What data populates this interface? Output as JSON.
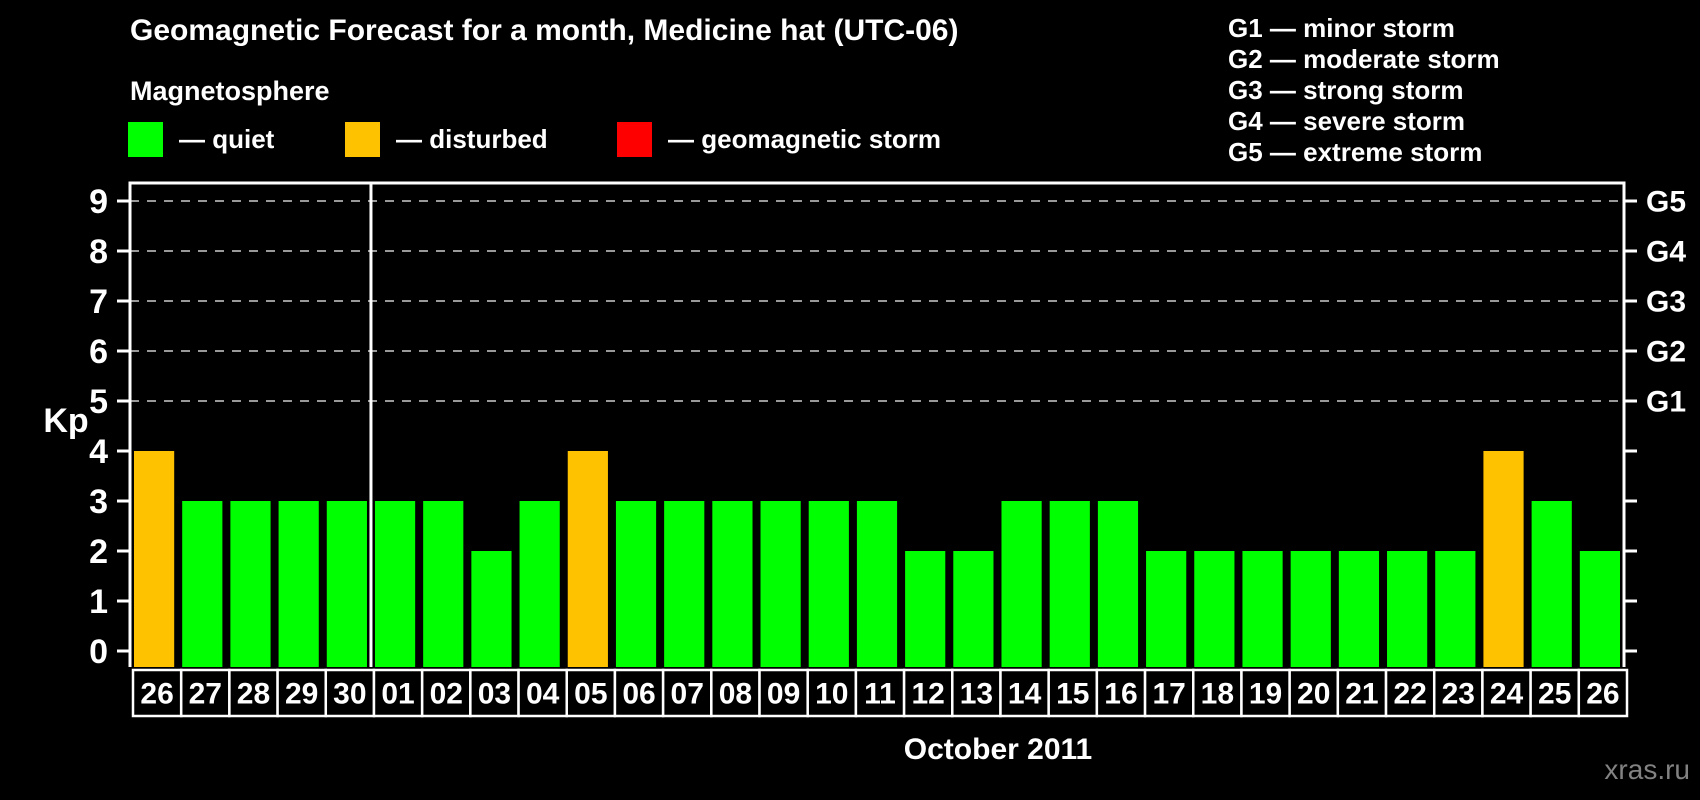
{
  "header": {
    "title": "Geomagnetic Forecast for a month, Medicine hat (UTC-06)",
    "subtitle": "Magnetosphere"
  },
  "legend": {
    "items": [
      {
        "label": "— quiet",
        "status": "quiet",
        "color": "#00FF00"
      },
      {
        "label": "— disturbed",
        "status": "disturbed",
        "color": "#FFC200"
      },
      {
        "label": "— geomagnetic storm",
        "status": "storm",
        "color": "#FF0000"
      }
    ]
  },
  "g_scale_legend": {
    "items": [
      "G1 — minor storm",
      "G2 — moderate storm",
      "G3 — strong storm",
      "G4 — severe storm",
      "G5 — extreme storm"
    ]
  },
  "watermark": "xras.ru",
  "chart_data": {
    "type": "bar",
    "title": "Geomagnetic Forecast for a month, Medicine hat (UTC-06)",
    "xlabel": "October 2011",
    "ylabel": "Kp",
    "ylim": [
      -0.32,
      9.36
    ],
    "yticks": [
      0,
      1,
      2,
      3,
      4,
      5,
      6,
      7,
      8,
      9
    ],
    "gridline_levels": [
      5,
      6,
      7,
      8,
      9
    ],
    "right_axis": [
      {
        "kp": 5,
        "label": "G1"
      },
      {
        "kp": 6,
        "label": "G2"
      },
      {
        "kp": 7,
        "label": "G3"
      },
      {
        "kp": 8,
        "label": "G4"
      },
      {
        "kp": 9,
        "label": "G5"
      }
    ],
    "month_separator_after_index": 4,
    "categories": [
      "26",
      "27",
      "28",
      "29",
      "30",
      "01",
      "02",
      "03",
      "04",
      "05",
      "06",
      "07",
      "08",
      "09",
      "10",
      "11",
      "12",
      "13",
      "14",
      "15",
      "16",
      "17",
      "18",
      "19",
      "20",
      "21",
      "22",
      "23",
      "24",
      "25",
      "26"
    ],
    "values": [
      4,
      3,
      3,
      3,
      3,
      3,
      3,
      2,
      3,
      4,
      3,
      3,
      3,
      3,
      3,
      3,
      2,
      2,
      3,
      3,
      3,
      2,
      2,
      2,
      2,
      2,
      2,
      2,
      4,
      3,
      2
    ],
    "statuses": [
      "disturbed",
      "quiet",
      "quiet",
      "quiet",
      "quiet",
      "quiet",
      "quiet",
      "quiet",
      "quiet",
      "disturbed",
      "quiet",
      "quiet",
      "quiet",
      "quiet",
      "quiet",
      "quiet",
      "quiet",
      "quiet",
      "quiet",
      "quiet",
      "quiet",
      "quiet",
      "quiet",
      "quiet",
      "quiet",
      "quiet",
      "quiet",
      "quiet",
      "disturbed",
      "quiet",
      "quiet"
    ],
    "status_colors": {
      "quiet": "#00FF00",
      "disturbed": "#FFC200",
      "storm": "#FF0000"
    }
  }
}
